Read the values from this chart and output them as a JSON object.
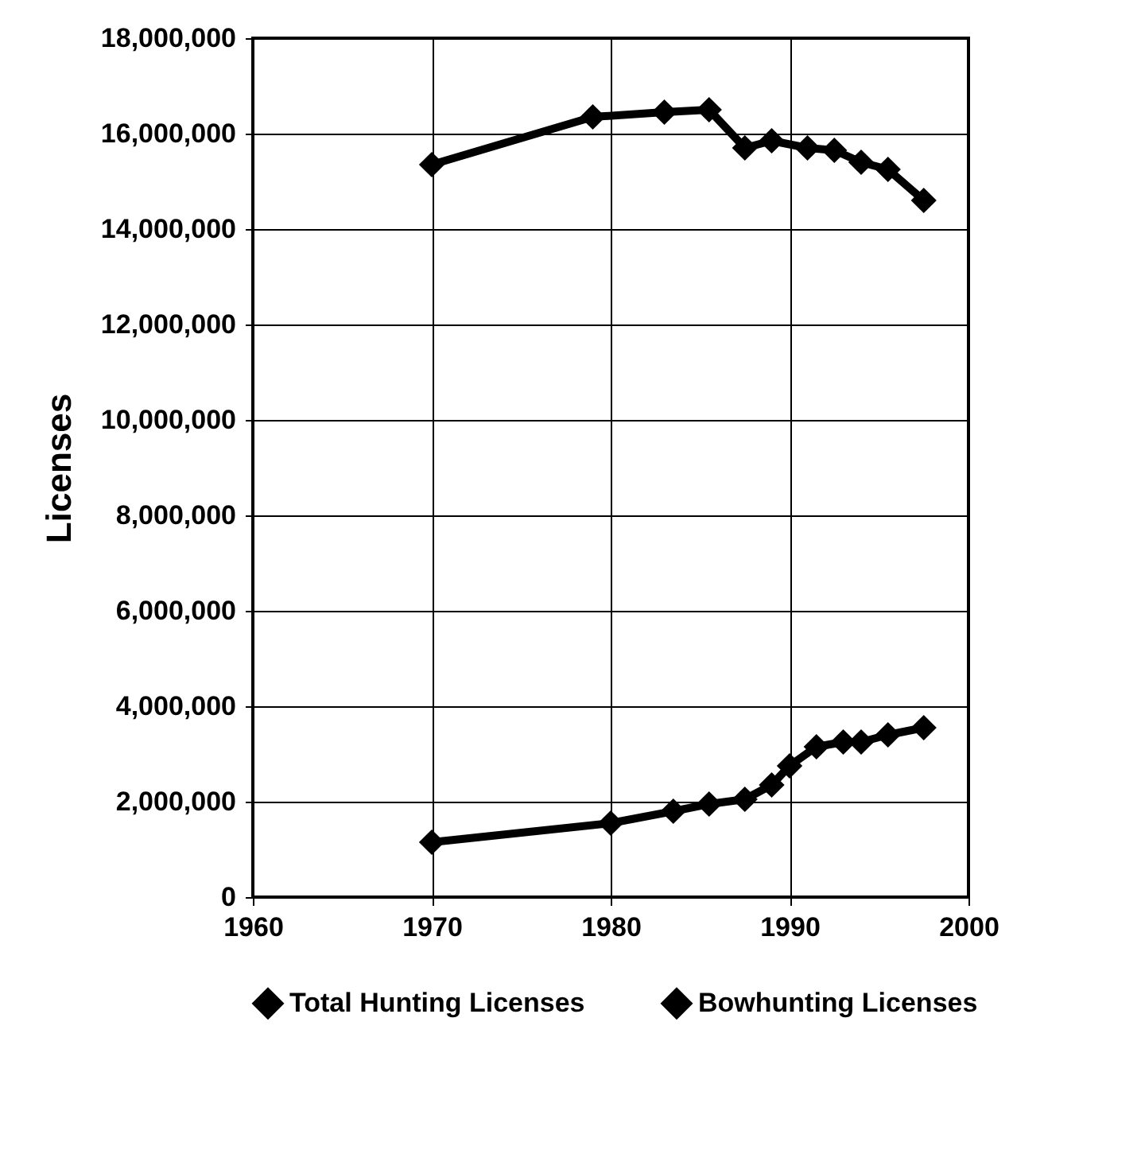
{
  "chart_data": {
    "type": "line",
    "ylabel": "Licenses",
    "xlim": [
      1960,
      2000
    ],
    "xticks": [
      1960,
      1970,
      1980,
      1990,
      2000
    ],
    "ylim": [
      0,
      18000000
    ],
    "yticks": [
      0,
      {
        "value": 2000000,
        "label": "2,000,000"
      },
      {
        "value": 4000000,
        "label": "4,000,000"
      },
      {
        "value": 6000000,
        "label": "6,000,000"
      },
      {
        "value": 8000000,
        "label": "8,000,000"
      },
      {
        "value": 10000000,
        "label": "10,000,000"
      },
      {
        "value": 12000000,
        "label": "12,000,000"
      },
      {
        "value": 14000000,
        "label": "14,000,000"
      },
      {
        "value": 16000000,
        "label": "16,000,000"
      },
      {
        "value": 18000000,
        "label": "18,000,000"
      }
    ],
    "grid": true,
    "legend": "bottom",
    "marker": "diamond",
    "line_style": "solid",
    "series": [
      {
        "name": "Total Hunting Licenses",
        "color": "#000000",
        "x": [
          1970,
          1979,
          1983,
          1985.5,
          1987.5,
          1989,
          1991,
          1992.5,
          1994,
          1995.5,
          1997.5
        ],
        "values": [
          15350000,
          16350000,
          16450000,
          16500000,
          15700000,
          15850000,
          15700000,
          15650000,
          15400000,
          15250000,
          14600000
        ]
      },
      {
        "name": "Bowhunting Licenses",
        "color": "#000000",
        "x": [
          1970,
          1980,
          1983.5,
          1985.5,
          1987.5,
          1989,
          1990,
          1991.5,
          1993,
          1994,
          1995.5,
          1997.5
        ],
        "values": [
          1150000,
          1550000,
          1800000,
          1950000,
          2050000,
          2350000,
          2750000,
          3150000,
          3250000,
          3250000,
          3400000,
          3550000
        ]
      }
    ]
  }
}
